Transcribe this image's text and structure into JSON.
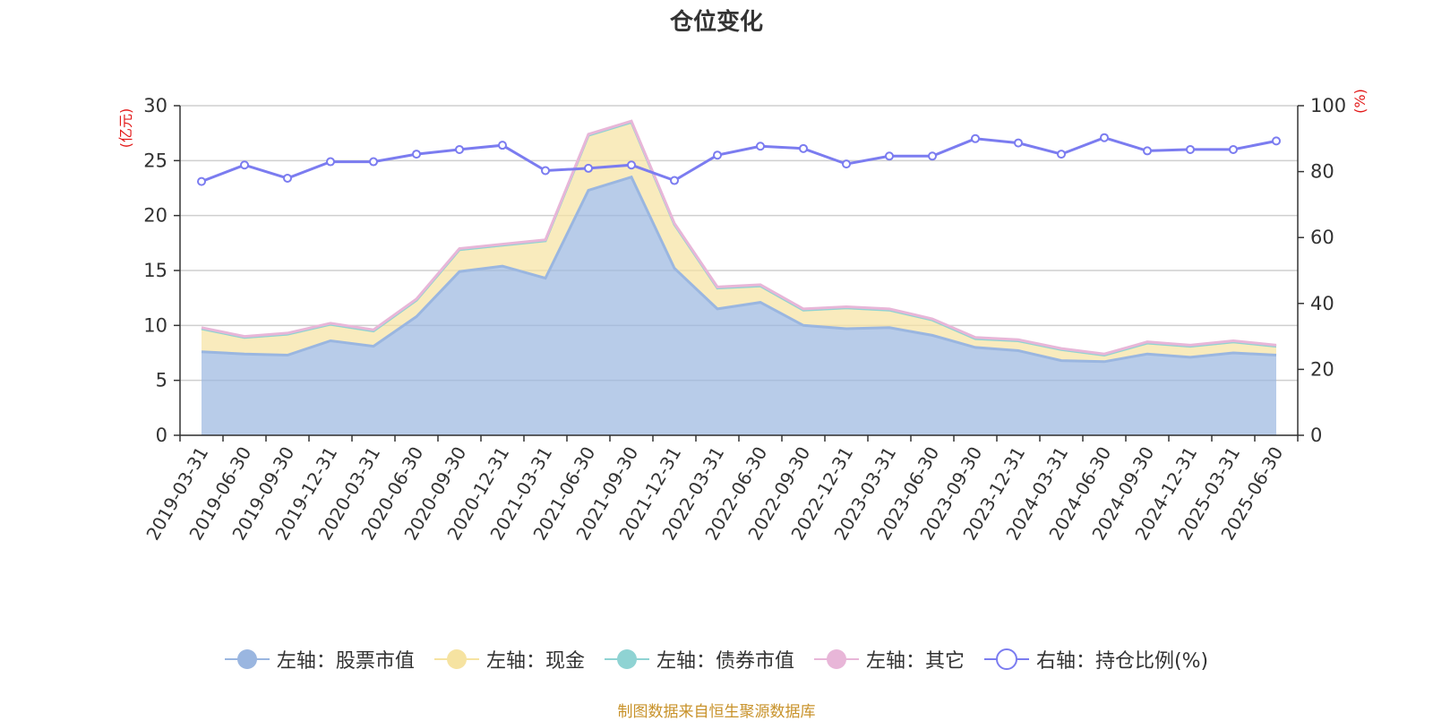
{
  "chart_data": {
    "type": "area",
    "title": "仓位变化",
    "left_axis_unit": "(亿元)",
    "right_axis_unit": "(%)",
    "ylim_left": [
      0,
      30
    ],
    "yticks_left": [
      "0",
      "5",
      "10",
      "15",
      "20",
      "25",
      "30"
    ],
    "ylim_right": [
      0,
      100
    ],
    "yticks_right": [
      "0",
      "20",
      "40",
      "60",
      "80",
      "100"
    ],
    "categories": [
      "2019-03-31",
      "2019-06-30",
      "2019-09-30",
      "2019-12-31",
      "2020-03-31",
      "2020-06-30",
      "2020-09-30",
      "2020-12-31",
      "2021-03-31",
      "2021-06-30",
      "2021-09-30",
      "2021-12-31",
      "2022-03-31",
      "2022-06-30",
      "2022-09-30",
      "2022-12-31",
      "2023-03-31",
      "2023-06-30",
      "2023-09-30",
      "2023-12-31",
      "2024-03-31",
      "2024-06-30",
      "2024-09-30",
      "2024-12-31",
      "2025-03-31",
      "2025-06-30"
    ],
    "series": [
      {
        "name": "左轴：股票市值",
        "axis": "left",
        "stacked": true,
        "color": "#9ab6e0",
        "values": [
          7.6,
          7.4,
          7.3,
          8.6,
          8.1,
          10.8,
          14.9,
          15.4,
          14.3,
          22.3,
          23.5,
          15.2,
          11.5,
          12.1,
          10.0,
          9.7,
          9.8,
          9.1,
          8.0,
          7.7,
          6.8,
          6.7,
          7.4,
          7.1,
          7.5,
          7.3
        ]
      },
      {
        "name": "左轴：现金",
        "axis": "left",
        "stacked": true,
        "color": "#f6e3a1",
        "values": [
          2.1,
          1.5,
          1.9,
          1.5,
          1.4,
          1.5,
          2.0,
          1.9,
          3.4,
          5.0,
          5.0,
          4.0,
          1.9,
          1.5,
          1.4,
          1.9,
          1.6,
          1.4,
          0.8,
          0.9,
          1.0,
          0.6,
          1.0,
          1.0,
          1.0,
          0.8
        ]
      },
      {
        "name": "左轴：债券市值",
        "axis": "left",
        "stacked": true,
        "color": "#8fd3d3",
        "values": [
          0,
          0,
          0,
          0,
          0,
          0,
          0,
          0,
          0,
          0,
          0,
          0,
          0,
          0,
          0,
          0,
          0,
          0,
          0,
          0,
          0,
          0,
          0,
          0,
          0,
          0
        ]
      },
      {
        "name": "左轴：其它",
        "axis": "left",
        "stacked": true,
        "color": "#e8b6d8",
        "values": [
          0.1,
          0.1,
          0.1,
          0.1,
          0.1,
          0.1,
          0.1,
          0.1,
          0.1,
          0.1,
          0.1,
          0.1,
          0.1,
          0.1,
          0.1,
          0.1,
          0.1,
          0.1,
          0.1,
          0.1,
          0.1,
          0.1,
          0.1,
          0.1,
          0.1,
          0.1
        ]
      },
      {
        "name": "右轴：持仓比例(%)",
        "axis": "right",
        "stacked": false,
        "color": "#7b7cf0",
        "values": [
          77,
          82,
          78,
          83,
          83,
          85.3,
          86.7,
          88,
          80.3,
          81,
          82,
          77.3,
          85,
          87.7,
          87,
          82.3,
          84.7,
          84.7,
          90,
          88.7,
          85.3,
          90.3,
          86.3,
          86.7,
          86.7,
          89.3
        ]
      }
    ],
    "grid": true,
    "legend_position": "bottom"
  },
  "source_text": "制图数据来自恒生聚源数据库"
}
